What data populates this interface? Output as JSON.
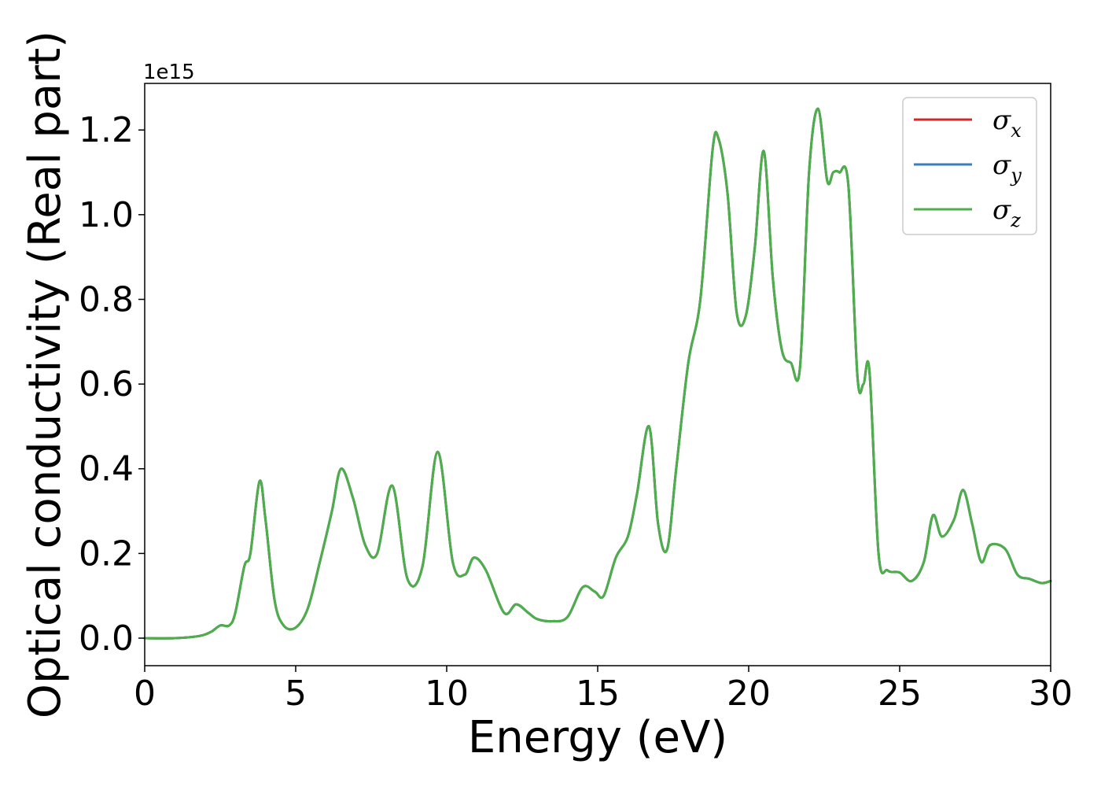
{
  "chart_data": {
    "type": "line",
    "xlabel": "Energy (eV)",
    "ylabel": "Optical conductivity (Real part)",
    "y_offset_label": "1e15",
    "xlim": [
      0,
      30
    ],
    "ylim": [
      -0.065,
      1.31
    ],
    "x_ticks": [
      0,
      5,
      10,
      15,
      20,
      25,
      30
    ],
    "x_tick_labels": [
      "0",
      "5",
      "10",
      "15",
      "20",
      "25",
      "30"
    ],
    "y_ticks": [
      0.0,
      0.2,
      0.4,
      0.6,
      0.8,
      1.0,
      1.2
    ],
    "y_tick_labels": [
      "0.0",
      "0.2",
      "0.4",
      "0.6",
      "0.8",
      "1.0",
      "1.2"
    ],
    "grid": false,
    "legend_position": "top-right",
    "series": [
      {
        "name": "σx",
        "name_base": "σ",
        "name_sub": "x",
        "color": "#d62728",
        "x": [
          0,
          1,
          1.8,
          2.2,
          2.5,
          2.8,
          3.0,
          3.3,
          3.5,
          3.8,
          4.0,
          4.3,
          4.6,
          5.0,
          5.4,
          5.8,
          6.2,
          6.5,
          6.9,
          7.3,
          7.7,
          8.2,
          8.7,
          9.2,
          9.7,
          10.2,
          10.6,
          10.9,
          11.3,
          11.9,
          12.3,
          12.7,
          13.0,
          13.5,
          14.0,
          14.5,
          14.9,
          15.2,
          15.6,
          16.0,
          16.3,
          16.7,
          17.0,
          17.3,
          17.6,
          18.0,
          18.4,
          18.8,
          19.0,
          19.3,
          19.6,
          19.9,
          20.2,
          20.5,
          20.8,
          21.1,
          21.4,
          21.7,
          22.0,
          22.3,
          22.6,
          22.8,
          23.0,
          23.3,
          23.6,
          23.8,
          24.0,
          24.3,
          24.6,
          25.0,
          25.4,
          25.8,
          26.1,
          26.4,
          26.8,
          27.1,
          27.4,
          27.7,
          28.0,
          28.5,
          28.9,
          29.3,
          29.7,
          30.0
        ],
        "values": [
          0.0,
          0.0,
          0.005,
          0.015,
          0.03,
          0.03,
          0.06,
          0.17,
          0.2,
          0.37,
          0.28,
          0.09,
          0.03,
          0.025,
          0.07,
          0.18,
          0.3,
          0.4,
          0.33,
          0.22,
          0.2,
          0.36,
          0.14,
          0.17,
          0.44,
          0.18,
          0.15,
          0.19,
          0.16,
          0.06,
          0.08,
          0.06,
          0.045,
          0.04,
          0.05,
          0.12,
          0.11,
          0.1,
          0.19,
          0.24,
          0.34,
          0.5,
          0.27,
          0.21,
          0.4,
          0.65,
          0.8,
          1.15,
          1.18,
          1.05,
          0.77,
          0.76,
          0.92,
          1.15,
          0.85,
          0.68,
          0.65,
          0.64,
          1.1,
          1.25,
          1.08,
          1.1,
          1.1,
          1.07,
          0.62,
          0.6,
          0.63,
          0.2,
          0.16,
          0.155,
          0.135,
          0.18,
          0.29,
          0.24,
          0.28,
          0.35,
          0.27,
          0.18,
          0.22,
          0.21,
          0.15,
          0.14,
          0.13,
          0.135
        ]
      },
      {
        "name": "σy",
        "name_base": "σ",
        "name_sub": "y",
        "color": "#3a7ebf",
        "x": [
          0,
          1,
          1.8,
          2.2,
          2.5,
          2.8,
          3.0,
          3.3,
          3.5,
          3.8,
          4.0,
          4.3,
          4.6,
          5.0,
          5.4,
          5.8,
          6.2,
          6.5,
          6.9,
          7.3,
          7.7,
          8.2,
          8.7,
          9.2,
          9.7,
          10.2,
          10.6,
          10.9,
          11.3,
          11.9,
          12.3,
          12.7,
          13.0,
          13.5,
          14.0,
          14.5,
          14.9,
          15.2,
          15.6,
          16.0,
          16.3,
          16.7,
          17.0,
          17.3,
          17.6,
          18.0,
          18.4,
          18.8,
          19.0,
          19.3,
          19.6,
          19.9,
          20.2,
          20.5,
          20.8,
          21.1,
          21.4,
          21.7,
          22.0,
          22.3,
          22.6,
          22.8,
          23.0,
          23.3,
          23.6,
          23.8,
          24.0,
          24.3,
          24.6,
          25.0,
          25.4,
          25.8,
          26.1,
          26.4,
          26.8,
          27.1,
          27.4,
          27.7,
          28.0,
          28.5,
          28.9,
          29.3,
          29.7,
          30.0
        ],
        "values": [
          0.0,
          0.0,
          0.005,
          0.015,
          0.03,
          0.03,
          0.06,
          0.17,
          0.2,
          0.37,
          0.28,
          0.09,
          0.03,
          0.025,
          0.07,
          0.18,
          0.3,
          0.4,
          0.33,
          0.22,
          0.2,
          0.36,
          0.14,
          0.17,
          0.44,
          0.18,
          0.15,
          0.19,
          0.16,
          0.06,
          0.08,
          0.06,
          0.045,
          0.04,
          0.05,
          0.12,
          0.11,
          0.1,
          0.19,
          0.24,
          0.34,
          0.5,
          0.27,
          0.21,
          0.4,
          0.65,
          0.8,
          1.15,
          1.18,
          1.05,
          0.77,
          0.76,
          0.92,
          1.15,
          0.85,
          0.68,
          0.65,
          0.64,
          1.1,
          1.25,
          1.08,
          1.1,
          1.1,
          1.07,
          0.62,
          0.6,
          0.63,
          0.2,
          0.16,
          0.155,
          0.135,
          0.18,
          0.29,
          0.24,
          0.28,
          0.35,
          0.27,
          0.18,
          0.22,
          0.21,
          0.15,
          0.14,
          0.13,
          0.135
        ]
      },
      {
        "name": "σz",
        "name_base": "σ",
        "name_sub": "z",
        "color": "#4daf4a",
        "x": [
          0,
          1,
          1.8,
          2.2,
          2.5,
          2.8,
          3.0,
          3.3,
          3.5,
          3.8,
          4.0,
          4.3,
          4.6,
          5.0,
          5.4,
          5.8,
          6.2,
          6.5,
          6.9,
          7.3,
          7.7,
          8.2,
          8.7,
          9.2,
          9.7,
          10.2,
          10.6,
          10.9,
          11.3,
          11.9,
          12.3,
          12.7,
          13.0,
          13.5,
          14.0,
          14.5,
          14.9,
          15.2,
          15.6,
          16.0,
          16.3,
          16.7,
          17.0,
          17.3,
          17.6,
          18.0,
          18.4,
          18.8,
          19.0,
          19.3,
          19.6,
          19.9,
          20.2,
          20.5,
          20.8,
          21.1,
          21.4,
          21.7,
          22.0,
          22.3,
          22.6,
          22.8,
          23.0,
          23.3,
          23.6,
          23.8,
          24.0,
          24.3,
          24.6,
          25.0,
          25.4,
          25.8,
          26.1,
          26.4,
          26.8,
          27.1,
          27.4,
          27.7,
          28.0,
          28.5,
          28.9,
          29.3,
          29.7,
          30.0
        ],
        "values": [
          0.0,
          0.0,
          0.005,
          0.015,
          0.03,
          0.03,
          0.06,
          0.17,
          0.2,
          0.37,
          0.28,
          0.09,
          0.03,
          0.025,
          0.07,
          0.18,
          0.3,
          0.4,
          0.33,
          0.22,
          0.2,
          0.36,
          0.14,
          0.17,
          0.44,
          0.18,
          0.15,
          0.19,
          0.16,
          0.06,
          0.08,
          0.06,
          0.045,
          0.04,
          0.05,
          0.12,
          0.11,
          0.1,
          0.19,
          0.24,
          0.34,
          0.5,
          0.27,
          0.21,
          0.4,
          0.65,
          0.8,
          1.15,
          1.18,
          1.05,
          0.77,
          0.76,
          0.92,
          1.15,
          0.85,
          0.68,
          0.65,
          0.64,
          1.1,
          1.25,
          1.08,
          1.1,
          1.1,
          1.07,
          0.62,
          0.6,
          0.63,
          0.2,
          0.16,
          0.155,
          0.135,
          0.18,
          0.29,
          0.24,
          0.28,
          0.35,
          0.27,
          0.18,
          0.22,
          0.21,
          0.15,
          0.14,
          0.13,
          0.135
        ]
      }
    ]
  }
}
